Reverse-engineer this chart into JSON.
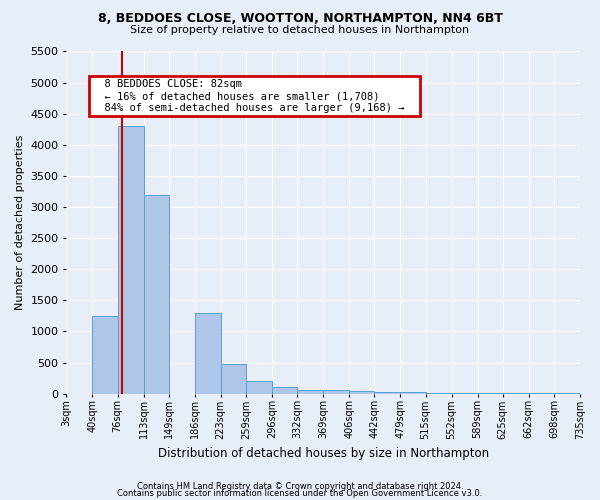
{
  "title1": "8, BEDDOES CLOSE, WOOTTON, NORTHAMPTON, NN4 6BT",
  "title2": "Size of property relative to detached houses in Northampton",
  "xlabel": "Distribution of detached houses by size in Northampton",
  "ylabel": "Number of detached properties",
  "footer1": "Contains HM Land Registry data © Crown copyright and database right 2024.",
  "footer2": "Contains public sector information licensed under the Open Government Licence v3.0.",
  "annotation_title": "8 BEDDOES CLOSE: 82sqm",
  "annotation_line1": "← 16% of detached houses are smaller (1,708)",
  "annotation_line2": "84% of semi-detached houses are larger (9,168) →",
  "property_size": 82,
  "bar_edges": [
    3,
    40,
    76,
    113,
    149,
    186,
    223,
    259,
    296,
    332,
    369,
    406,
    442,
    479,
    515,
    552,
    589,
    625,
    662,
    698,
    735
  ],
  "bar_heights": [
    0,
    1250,
    4300,
    3200,
    0,
    1300,
    470,
    200,
    110,
    55,
    55,
    50,
    30,
    20,
    15,
    10,
    10,
    5,
    5,
    5
  ],
  "bar_color": "#aec6e8",
  "bar_edge_color": "#5a9fd4",
  "vline_color": "#cc0000",
  "vline_x": 82,
  "annotation_box_color": "#cc0000",
  "background_color": "#e8eef8",
  "grid_color": "#ffffff",
  "ylim": [
    0,
    5500
  ],
  "yticks": [
    0,
    500,
    1000,
    1500,
    2000,
    2500,
    3000,
    3500,
    4000,
    4500,
    5000,
    5500
  ]
}
